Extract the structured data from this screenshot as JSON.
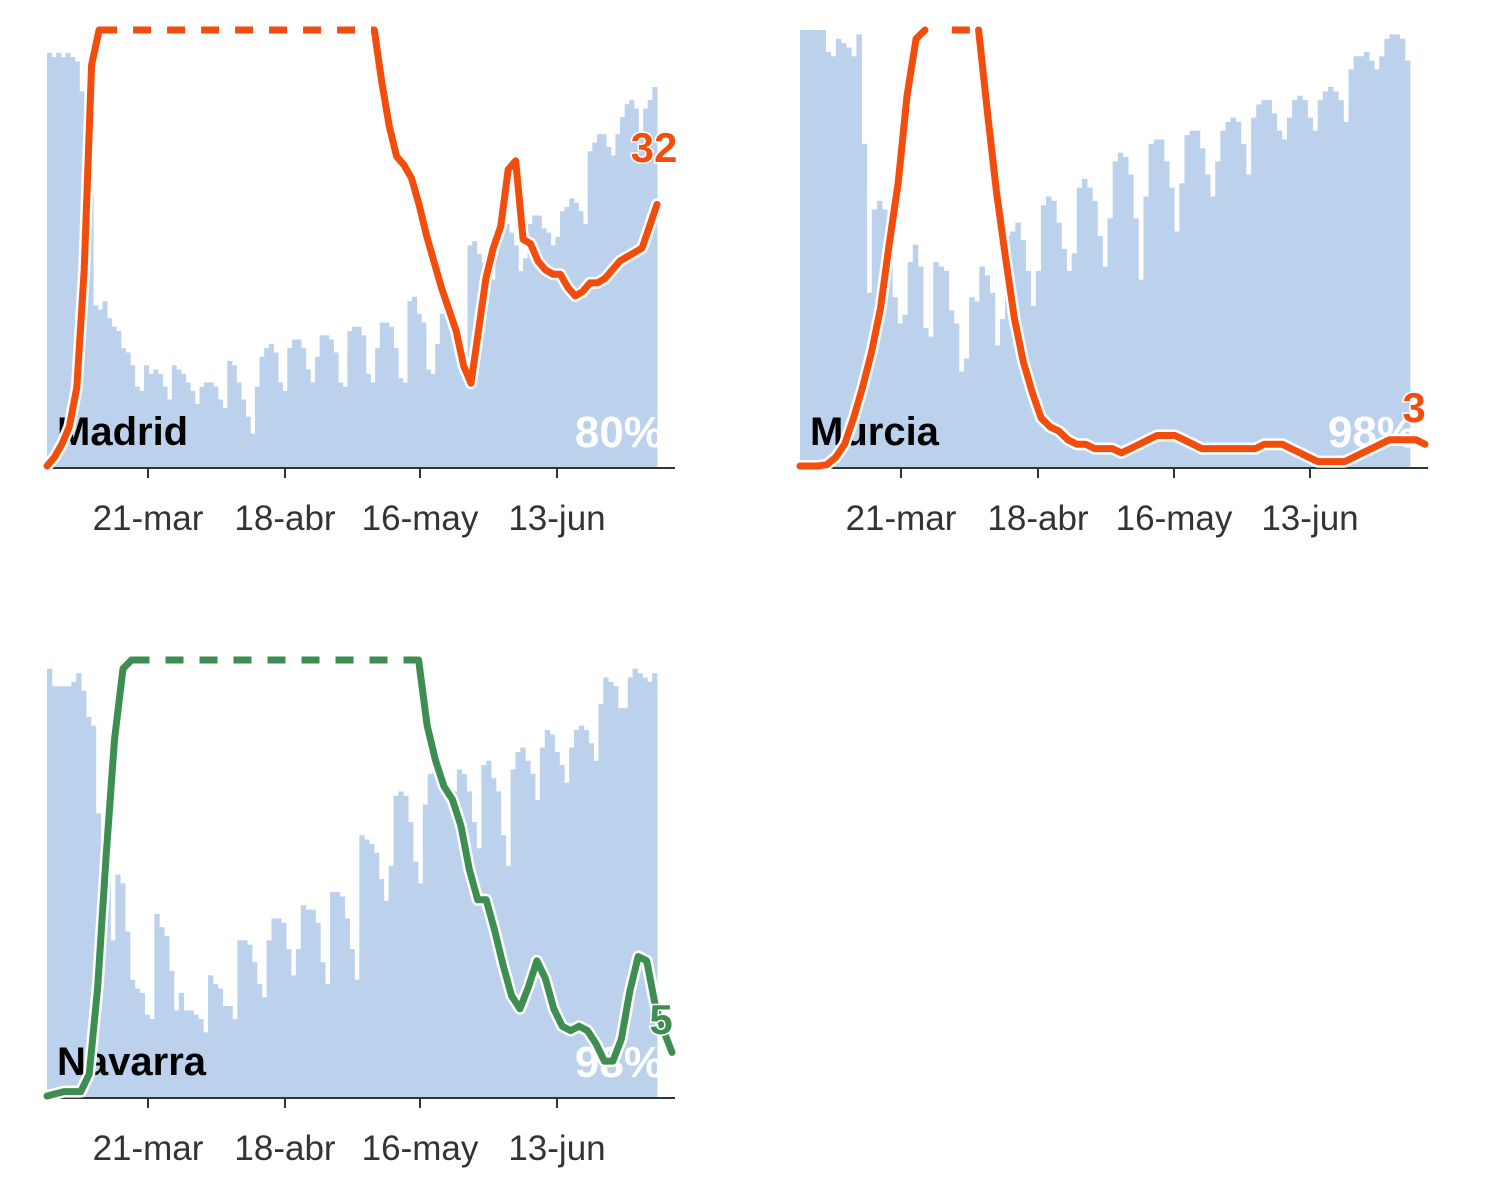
{
  "chart_data": [
    {
      "type": "bar+line",
      "region": "Madrid",
      "share_label": "80%",
      "end_value_label": "32",
      "line_color": "#f24d0c",
      "bar_color": "#bcd2ec",
      "x_ticks": [
        "21-mar",
        "18-abr",
        "16-may",
        "13-jun"
      ],
      "capped_segment": {
        "from_day": 7,
        "to_day": 44
      },
      "bars": [
        0.97,
        0.96,
        0.97,
        0.96,
        0.97,
        0.96,
        0.95,
        0.88,
        0.66,
        0.64,
        0.38,
        0.37,
        0.39,
        0.35,
        0.33,
        0.32,
        0.28,
        0.27,
        0.24,
        0.19,
        0.18,
        0.24,
        0.22,
        0.23,
        0.22,
        0.19,
        0.16,
        0.24,
        0.23,
        0.22,
        0.2,
        0.18,
        0.15,
        0.19,
        0.2,
        0.2,
        0.19,
        0.16,
        0.14,
        0.25,
        0.24,
        0.2,
        0.16,
        0.12,
        0.08,
        0.19,
        0.26,
        0.28,
        0.29,
        0.27,
        0.2,
        0.18,
        0.28,
        0.3,
        0.3,
        0.28,
        0.23,
        0.2,
        0.26,
        0.31,
        0.31,
        0.3,
        0.27,
        0.2,
        0.19,
        0.32,
        0.33,
        0.33,
        0.31,
        0.22,
        0.2,
        0.28,
        0.34,
        0.34,
        0.33,
        0.28,
        0.21,
        0.2,
        0.39,
        0.4,
        0.36,
        0.34,
        0.23,
        0.22,
        0.29,
        0.36,
        0.37,
        0.35,
        0.31,
        0.26,
        0.24,
        0.52,
        0.53,
        0.5,
        0.48,
        0.48,
        0.44,
        0.52,
        0.55,
        0.57,
        0.55,
        0.52,
        0.46,
        0.49,
        0.57,
        0.59,
        0.59,
        0.56,
        0.55,
        0.52,
        0.54,
        0.6,
        0.61,
        0.63,
        0.62,
        0.6,
        0.57,
        0.74,
        0.76,
        0.78,
        0.78,
        0.75,
        0.73,
        0.78,
        0.82,
        0.85,
        0.86,
        0.84,
        0.78,
        0.84,
        0.86,
        0.89
      ],
      "line": [
        [
          0,
          0
        ],
        [
          1,
          0.02
        ],
        [
          2,
          0.05
        ],
        [
          3,
          0.09
        ],
        [
          4,
          0.18
        ],
        [
          5,
          0.45
        ],
        [
          6,
          0.92
        ],
        [
          7,
          1
        ],
        [
          44,
          1
        ],
        [
          45,
          0.88
        ],
        [
          46,
          0.78
        ],
        [
          47,
          0.71
        ],
        [
          48,
          0.69
        ],
        [
          49,
          0.66
        ],
        [
          50,
          0.6
        ],
        [
          51,
          0.53
        ],
        [
          52,
          0.47
        ],
        [
          53,
          0.41
        ],
        [
          54,
          0.36
        ],
        [
          55,
          0.31
        ],
        [
          56,
          0.23
        ],
        [
          57,
          0.19
        ],
        [
          58,
          0.31
        ],
        [
          59,
          0.43
        ],
        [
          60,
          0.5
        ],
        [
          61,
          0.55
        ],
        [
          62,
          0.68
        ],
        [
          63,
          0.7
        ],
        [
          64,
          0.52
        ],
        [
          65,
          0.51
        ],
        [
          66,
          0.47
        ],
        [
          67,
          0.45
        ],
        [
          68,
          0.44
        ],
        [
          69,
          0.44
        ],
        [
          70,
          0.41
        ],
        [
          71,
          0.39
        ],
        [
          72,
          0.4
        ],
        [
          73,
          0.42
        ],
        [
          74,
          0.42
        ],
        [
          75,
          0.43
        ],
        [
          76,
          0.45
        ],
        [
          77,
          0.47
        ],
        [
          78,
          0.48
        ],
        [
          79,
          0.49
        ],
        [
          80,
          0.5
        ],
        [
          81,
          0.55
        ],
        [
          82,
          0.6
        ]
      ]
    },
    {
      "type": "bar+line",
      "region": "Murcia",
      "share_label": "98%",
      "end_value_label": "3",
      "line_color": "#f24d0c",
      "bar_color": "#bcd2ec",
      "x_ticks": [
        "21-mar",
        "18-abr",
        "16-may",
        "13-jun"
      ],
      "capped_segment": {
        "from_day": 17,
        "to_day": 20
      },
      "bars": [
        1.0,
        1.0,
        1.0,
        1.0,
        1.0,
        0.95,
        0.94,
        0.98,
        0.97,
        0.96,
        0.94,
        0.99,
        0.74,
        0.4,
        0.59,
        0.61,
        0.59,
        0.53,
        0.39,
        0.33,
        0.35,
        0.47,
        0.51,
        0.46,
        0.32,
        0.3,
        0.47,
        0.46,
        0.45,
        0.36,
        0.33,
        0.22,
        0.25,
        0.39,
        0.38,
        0.46,
        0.44,
        0.4,
        0.28,
        0.34,
        0.53,
        0.54,
        0.56,
        0.52,
        0.45,
        0.37,
        0.45,
        0.6,
        0.62,
        0.61,
        0.56,
        0.5,
        0.45,
        0.49,
        0.64,
        0.66,
        0.64,
        0.61,
        0.53,
        0.46,
        0.57,
        0.7,
        0.72,
        0.71,
        0.67,
        0.57,
        0.43,
        0.62,
        0.74,
        0.75,
        0.75,
        0.7,
        0.64,
        0.54,
        0.65,
        0.76,
        0.77,
        0.77,
        0.73,
        0.67,
        0.62,
        0.7,
        0.77,
        0.79,
        0.8,
        0.79,
        0.74,
        0.67,
        0.8,
        0.83,
        0.84,
        0.84,
        0.81,
        0.77,
        0.75,
        0.8,
        0.84,
        0.85,
        0.84,
        0.8,
        0.77,
        0.84,
        0.86,
        0.87,
        0.86,
        0.84,
        0.79,
        0.91,
        0.94,
        0.94,
        0.95,
        0.93,
        0.91,
        0.94,
        0.98,
        0.99,
        0.99,
        0.98,
        0.93
      ],
      "line": [
        [
          0,
          0
        ],
        [
          2,
          0
        ],
        [
          3,
          0.003
        ],
        [
          4,
          0.02
        ],
        [
          5,
          0.05
        ],
        [
          6,
          0.11
        ],
        [
          7,
          0.18
        ],
        [
          8,
          0.26
        ],
        [
          9,
          0.36
        ],
        [
          10,
          0.51
        ],
        [
          11,
          0.65
        ],
        [
          12,
          0.85
        ],
        [
          13,
          0.98
        ],
        [
          14,
          1
        ],
        [
          20,
          1
        ],
        [
          21,
          0.81
        ],
        [
          22,
          0.63
        ],
        [
          23,
          0.48
        ],
        [
          24,
          0.34
        ],
        [
          25,
          0.24
        ],
        [
          26,
          0.17
        ],
        [
          27,
          0.11
        ],
        [
          28,
          0.09
        ],
        [
          29,
          0.08
        ],
        [
          30,
          0.06
        ],
        [
          31,
          0.05
        ],
        [
          32,
          0.05
        ],
        [
          33,
          0.04
        ],
        [
          34,
          0.04
        ],
        [
          35,
          0.04
        ],
        [
          36,
          0.03
        ],
        [
          37,
          0.04
        ],
        [
          38,
          0.05
        ],
        [
          39,
          0.06
        ],
        [
          40,
          0.07
        ],
        [
          41,
          0.07
        ],
        [
          42,
          0.07
        ],
        [
          43,
          0.06
        ],
        [
          44,
          0.05
        ],
        [
          45,
          0.04
        ],
        [
          46,
          0.04
        ],
        [
          47,
          0.04
        ],
        [
          48,
          0.04
        ],
        [
          49,
          0.04
        ],
        [
          50,
          0.04
        ],
        [
          51,
          0.04
        ],
        [
          52,
          0.05
        ],
        [
          53,
          0.05
        ],
        [
          54,
          0.05
        ],
        [
          55,
          0.04
        ],
        [
          56,
          0.03
        ],
        [
          57,
          0.02
        ],
        [
          58,
          0.01
        ],
        [
          59,
          0.01
        ],
        [
          60,
          0.01
        ],
        [
          61,
          0.01
        ],
        [
          62,
          0.02
        ],
        [
          63,
          0.03
        ],
        [
          64,
          0.04
        ],
        [
          65,
          0.05
        ],
        [
          66,
          0.06
        ],
        [
          67,
          0.06
        ],
        [
          68,
          0.06
        ],
        [
          69,
          0.06
        ],
        [
          70,
          0.05
        ]
      ]
    },
    {
      "type": "bar+line",
      "region": "Navarra",
      "share_label": "98%",
      "end_value_label": "5",
      "line_color": "#3e8e51",
      "bar_color": "#bcd2ec",
      "x_ticks": [
        "21-mar",
        "18-abr",
        "16-may",
        "13-jun"
      ],
      "capped_segment": {
        "from_day": 10,
        "to_day": 44
      },
      "bars": [
        0.98,
        0.94,
        0.94,
        0.94,
        0.94,
        0.95,
        0.97,
        0.93,
        0.87,
        0.85,
        0.65,
        0.53,
        0.59,
        0.36,
        0.51,
        0.49,
        0.38,
        0.27,
        0.25,
        0.24,
        0.19,
        0.18,
        0.42,
        0.39,
        0.37,
        0.29,
        0.2,
        0.24,
        0.2,
        0.2,
        0.19,
        0.18,
        0.15,
        0.28,
        0.26,
        0.25,
        0.21,
        0.21,
        0.18,
        0.36,
        0.36,
        0.35,
        0.31,
        0.26,
        0.23,
        0.36,
        0.41,
        0.41,
        0.4,
        0.34,
        0.28,
        0.34,
        0.44,
        0.43,
        0.43,
        0.4,
        0.31,
        0.26,
        0.47,
        0.47,
        0.46,
        0.41,
        0.34,
        0.27,
        0.6,
        0.59,
        0.58,
        0.56,
        0.5,
        0.45,
        0.53,
        0.69,
        0.7,
        0.69,
        0.63,
        0.54,
        0.49,
        0.67,
        0.74,
        0.75,
        0.72,
        0.7,
        0.67,
        0.7,
        0.75,
        0.74,
        0.7,
        0.63,
        0.57,
        0.76,
        0.77,
        0.73,
        0.7,
        0.6,
        0.53,
        0.75,
        0.79,
        0.8,
        0.77,
        0.74,
        0.68,
        0.8,
        0.84,
        0.83,
        0.79,
        0.76,
        0.72,
        0.8,
        0.84,
        0.85,
        0.84,
        0.81,
        0.77,
        0.9,
        0.96,
        0.95,
        0.94,
        0.89,
        0.89,
        0.96,
        0.98,
        0.97,
        0.96,
        0.95,
        0.97
      ],
      "line": [
        [
          0,
          0
        ],
        [
          2,
          0.01
        ],
        [
          4,
          0.01
        ],
        [
          5,
          0.05
        ],
        [
          6,
          0.25
        ],
        [
          7,
          0.55
        ],
        [
          8,
          0.82
        ],
        [
          9,
          0.98
        ],
        [
          10,
          1
        ],
        [
          44,
          1
        ],
        [
          45,
          0.85
        ],
        [
          46,
          0.77
        ],
        [
          47,
          0.71
        ],
        [
          48,
          0.68
        ],
        [
          49,
          0.62
        ],
        [
          50,
          0.52
        ],
        [
          51,
          0.45
        ],
        [
          52,
          0.45
        ],
        [
          53,
          0.38
        ],
        [
          54,
          0.3
        ],
        [
          55,
          0.23
        ],
        [
          56,
          0.2
        ],
        [
          57,
          0.25
        ],
        [
          58,
          0.31
        ],
        [
          59,
          0.27
        ],
        [
          60,
          0.2
        ],
        [
          61,
          0.16
        ],
        [
          62,
          0.15
        ],
        [
          63,
          0.16
        ],
        [
          64,
          0.15
        ],
        [
          65,
          0.12
        ],
        [
          66,
          0.08
        ],
        [
          67,
          0.08
        ],
        [
          68,
          0.13
        ],
        [
          69,
          0.24
        ],
        [
          70,
          0.32
        ],
        [
          71,
          0.31
        ],
        [
          72,
          0.21
        ],
        [
          73,
          0.15
        ],
        [
          74,
          0.1
        ]
      ]
    }
  ]
}
